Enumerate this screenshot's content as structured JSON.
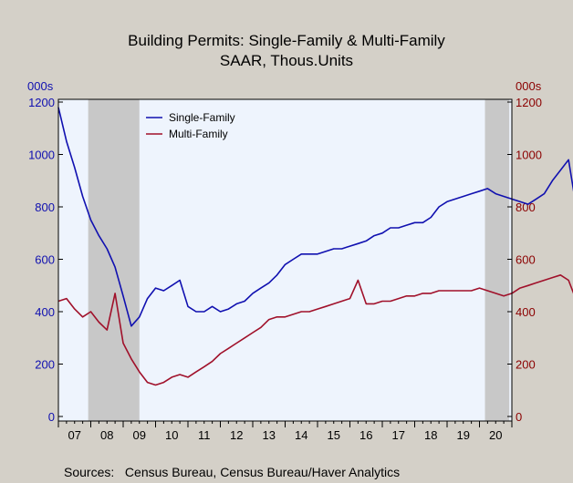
{
  "chart_data": {
    "type": "line",
    "title": "Building Permits: Single-Family & Multi-Family",
    "subtitle": "SAAR, Thous.Units",
    "ylabel_left": "000s",
    "ylabel_right": "000s",
    "ylim": [
      0,
      1200
    ],
    "yticks": [
      "0",
      "200",
      "400",
      "600",
      "800",
      "1000",
      "1200"
    ],
    "xticks": [
      "07",
      "08",
      "09",
      "10",
      "11",
      "12",
      "13",
      "14",
      "15",
      "16",
      "17",
      "18",
      "19",
      "20"
    ],
    "x_start": 2007.0,
    "x_step": 0.25,
    "recessions": [
      [
        2007.92,
        2009.5
      ],
      [
        2020.17,
        2020.92
      ]
    ],
    "legend_position": "top-left",
    "series": [
      {
        "name": "Single-Family",
        "color": "#1010b0",
        "axis": "left",
        "values": [
          1180,
          1050,
          950,
          840,
          750,
          690,
          640,
          570,
          460,
          345,
          380,
          450,
          490,
          480,
          500,
          520,
          420,
          400,
          400,
          420,
          400,
          410,
          430,
          440,
          470,
          490,
          510,
          540,
          580,
          600,
          620,
          620,
          620,
          630,
          640,
          640,
          650,
          660,
          670,
          690,
          700,
          720,
          720,
          730,
          740,
          740,
          760,
          800,
          820,
          830,
          840,
          850,
          860,
          870,
          850,
          840,
          830,
          820,
          810,
          830,
          850,
          900,
          940,
          980,
          790,
          750,
          960,
          1110
        ]
      },
      {
        "name": "Multi-Family",
        "color": "#a0102a",
        "axis": "right",
        "values": [
          440,
          450,
          410,
          380,
          400,
          360,
          330,
          470,
          280,
          220,
          170,
          130,
          120,
          130,
          150,
          160,
          150,
          170,
          190,
          210,
          240,
          260,
          280,
          300,
          320,
          340,
          370,
          380,
          380,
          390,
          400,
          400,
          410,
          420,
          430,
          440,
          450,
          520,
          430,
          430,
          440,
          440,
          450,
          460,
          460,
          470,
          470,
          480,
          480,
          480,
          480,
          480,
          490,
          480,
          470,
          460,
          470,
          490,
          500,
          510,
          520,
          530,
          540,
          520,
          440,
          430,
          460,
          420
        ]
      }
    ]
  },
  "source_text": "Sources:   Census Bureau, Census Bureau/Haver Analytics"
}
